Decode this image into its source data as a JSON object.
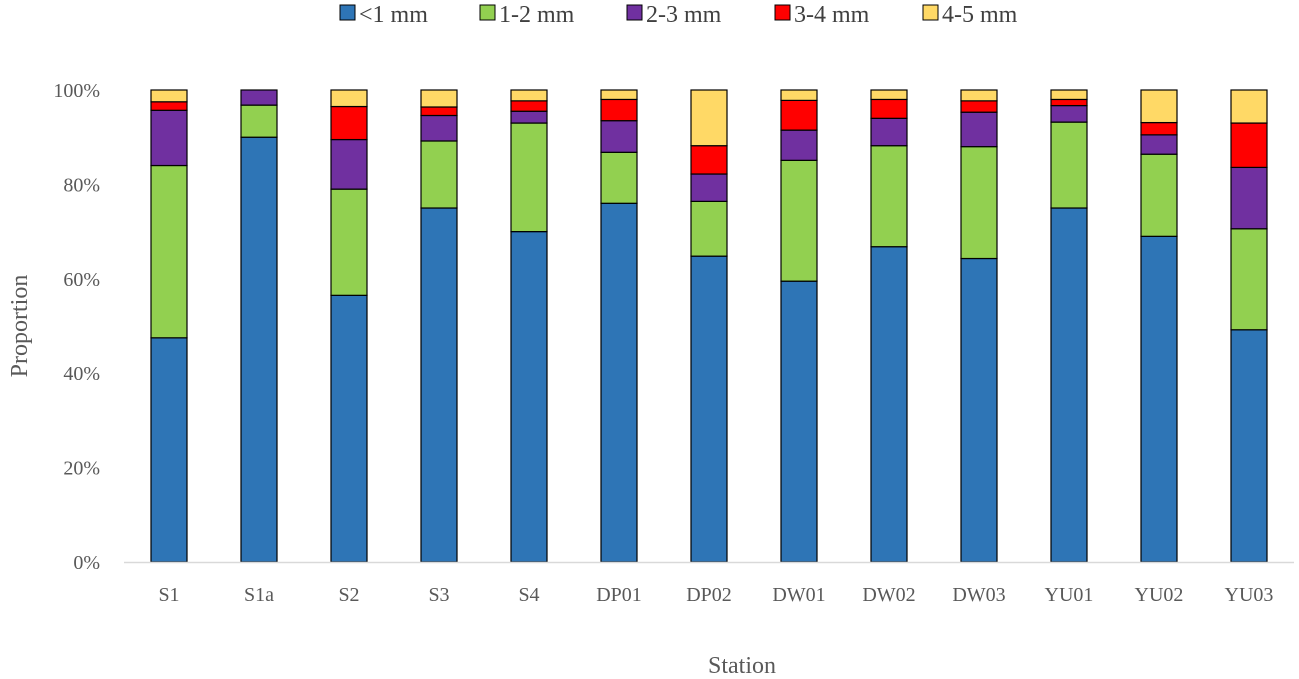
{
  "chart_data": {
    "type": "bar",
    "stacked": true,
    "title": "",
    "xlabel": "Station",
    "ylabel": "Proportion",
    "ylim": [
      0,
      100
    ],
    "y_ticks": [
      "0%",
      "20%",
      "40%",
      "60%",
      "80%",
      "100%"
    ],
    "y_tick_values": [
      0,
      20,
      40,
      60,
      80,
      100
    ],
    "legend_position": "top-center",
    "grid": false,
    "categories": [
      "S1",
      "S1a",
      "S2",
      "S3",
      "S4",
      "DP01",
      "DP02",
      "DW01",
      "DW02",
      "DW03",
      "YU01",
      "YU02",
      "YU03"
    ],
    "series": [
      {
        "name": "<1 mm",
        "color": "#2E75B6",
        "values": [
          47.5,
          90.0,
          56.5,
          75.0,
          70.0,
          76.0,
          64.8,
          59.5,
          66.8,
          64.3,
          75.0,
          69.0,
          49.2
        ]
      },
      {
        "name": "1-2 mm",
        "color": "#92D050",
        "values": [
          36.5,
          6.8,
          22.5,
          14.2,
          23.0,
          10.8,
          11.6,
          25.6,
          21.4,
          23.7,
          18.2,
          17.4,
          21.4
        ]
      },
      {
        "name": "2-3 mm",
        "color": "#7030A0",
        "values": [
          11.7,
          3.2,
          10.5,
          5.4,
          2.5,
          6.7,
          5.8,
          6.4,
          5.8,
          7.3,
          3.5,
          4.1,
          13.0
        ]
      },
      {
        "name": "3-4 mm",
        "color": "#FF0000",
        "values": [
          1.8,
          0,
          7.0,
          1.8,
          2.2,
          4.5,
          6.0,
          6.3,
          4.0,
          2.4,
          1.3,
          2.6,
          9.4
        ]
      },
      {
        "name": "4-5 mm",
        "color": "#FFD966",
        "values": [
          2.5,
          0,
          3.5,
          3.6,
          2.3,
          2.0,
          11.8,
          2.2,
          2.0,
          2.3,
          2.0,
          6.9,
          7.0
        ]
      }
    ]
  }
}
